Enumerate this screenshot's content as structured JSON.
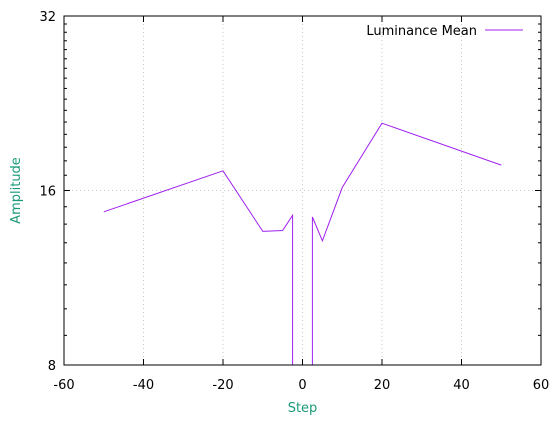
{
  "chart_data": {
    "type": "line",
    "xlabel": "Step",
    "ylabel": "Amplitude",
    "xlim": [
      -60,
      60
    ],
    "ylim": [
      8,
      32
    ],
    "yscale": "log",
    "x_ticks": [
      -60,
      -40,
      -20,
      0,
      20,
      40,
      60
    ],
    "y_ticks": [
      8,
      16,
      32
    ],
    "x_tick_labels": [
      "-60",
      "-40",
      "-20",
      "0",
      "20",
      "40",
      "60"
    ],
    "y_tick_labels": [
      "8",
      "16",
      "32"
    ],
    "grid": true,
    "legend_position": "top-right",
    "series": [
      {
        "name": "Luminance Mean",
        "color": "#a020f0",
        "x": [
          -50,
          -20,
          -10,
          -5,
          -2.5,
          -2.5,
          2.5,
          2.5,
          5,
          10,
          20,
          50
        ],
        "y": [
          14.7,
          17.3,
          13.6,
          13.65,
          14.5,
          8,
          8,
          14.4,
          13.1,
          16.2,
          20.9,
          17.7
        ]
      }
    ]
  }
}
